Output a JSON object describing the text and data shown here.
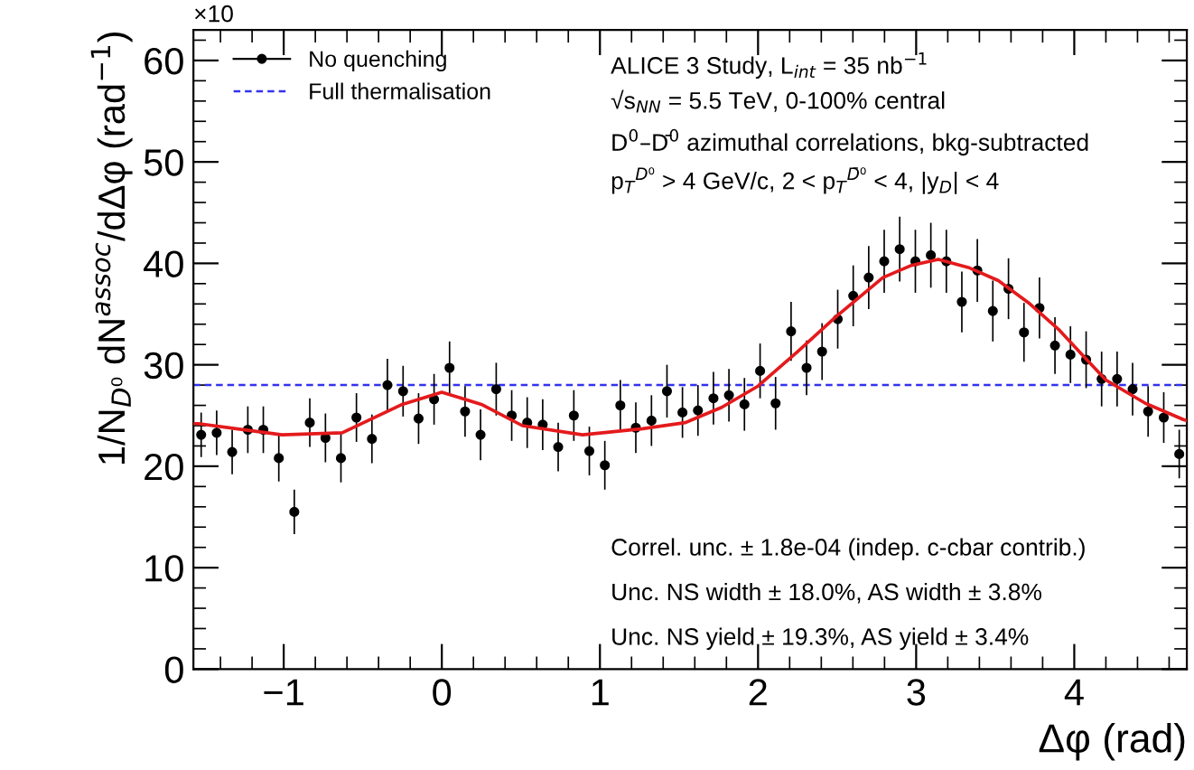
{
  "chart_data": {
    "type": "scatter",
    "xlabel": "Δφ (rad)",
    "ylabel": "1/N$_{D⁰}$ dN$^{assoc}$/dΔφ (rad$^{−1}$)",
    "x": [
      -1.522,
      -1.424,
      -1.326,
      -1.227,
      -1.129,
      -1.031,
      -0.933,
      -0.835,
      -0.736,
      -0.638,
      -0.54,
      -0.442,
      -0.344,
      -0.245,
      -0.147,
      -0.049,
      0.049,
      0.147,
      0.245,
      0.344,
      0.442,
      0.54,
      0.638,
      0.736,
      0.835,
      0.933,
      1.031,
      1.129,
      1.227,
      1.326,
      1.424,
      1.522,
      1.62,
      1.718,
      1.816,
      1.914,
      2.013,
      2.111,
      2.209,
      2.307,
      2.405,
      2.504,
      2.602,
      2.7,
      2.798,
      2.896,
      2.995,
      3.093,
      3.191,
      3.289,
      3.387,
      3.485,
      3.584,
      3.682,
      3.78,
      3.878,
      3.976,
      4.075,
      4.173,
      4.271,
      4.369,
      4.467,
      4.566,
      4.664
    ],
    "series": [
      {
        "name": "No quenching",
        "color": "#000000",
        "marker": "circle",
        "values": [
          23.1,
          23.3,
          21.4,
          23.6,
          23.6,
          20.8,
          15.5,
          24.3,
          22.8,
          20.8,
          24.8,
          22.7,
          28.0,
          27.4,
          24.7,
          26.6,
          29.7,
          25.4,
          23.1,
          27.6,
          25.0,
          24.3,
          24.1,
          21.9,
          25.0,
          21.5,
          20.1,
          26.0,
          23.8,
          24.5,
          27.4,
          25.3,
          25.5,
          26.7,
          27.0,
          26.1,
          29.4,
          26.2,
          33.3,
          29.7,
          31.3,
          34.5,
          36.8,
          38.6,
          40.2,
          41.4,
          40.2,
          40.8,
          40.2,
          36.2,
          39.3,
          35.3,
          37.5,
          33.2,
          35.6,
          31.9,
          31.0,
          30.5,
          28.6,
          28.6,
          27.6,
          25.4,
          24.8,
          21.2
        ],
        "errors": [
          2.2,
          2.2,
          2.2,
          2.3,
          2.3,
          2.3,
          2.2,
          2.4,
          2.4,
          2.4,
          2.4,
          2.4,
          2.6,
          2.5,
          2.5,
          2.5,
          2.6,
          2.5,
          2.5,
          2.6,
          2.5,
          2.5,
          2.5,
          2.4,
          2.5,
          2.4,
          2.4,
          2.5,
          2.5,
          2.5,
          2.6,
          2.5,
          2.5,
          2.6,
          2.6,
          2.6,
          2.7,
          2.6,
          2.9,
          2.7,
          2.8,
          2.9,
          3.0,
          3.1,
          3.1,
          3.2,
          3.1,
          3.2,
          3.1,
          3.0,
          3.1,
          3.0,
          3.0,
          2.9,
          3.0,
          2.8,
          2.8,
          2.8,
          2.7,
          2.7,
          2.6,
          2.5,
          2.5,
          2.4
        ]
      },
      {
        "type": "line",
        "color": "#e41a1c",
        "x": [
          -1.571,
          -1.54,
          -1.01,
          -0.63,
          -0.25,
          0,
          0.25,
          0.51,
          0.89,
          1.27,
          1.54,
          1.77,
          2.0,
          2.25,
          2.49,
          2.79,
          2.97,
          3.14,
          3.33,
          3.52,
          3.72,
          3.9,
          4.05,
          4.2,
          4.45,
          4.69,
          4.712
        ],
        "values": [
          24.2,
          24.2,
          23.1,
          23.3,
          26.1,
          27.3,
          26.1,
          24.0,
          23.1,
          23.7,
          24.3,
          25.8,
          27.9,
          31.3,
          34.7,
          38.6,
          39.8,
          40.4,
          39.6,
          38.3,
          36.0,
          33.5,
          31.0,
          28.5,
          26.2,
          24.6,
          24.5
        ]
      }
    ],
    "ref_lines": [
      {
        "axis": "y",
        "value": 28,
        "label": "Full thermalisation",
        "color": "#3333ee",
        "line_style": "dashed"
      }
    ],
    "annotations": [
      "×10",
      "ALICE 3 Study, L$_{int}$ = 35 nb$^{−1}$",
      "√s$_{NN}$ = 5.5 TeV, 0-100% central",
      "D$^{0}$–D̄$^{0}$ azimuthal correlations, bkg-subtracted",
      "p$_{T}$$^{D⁰}$ > 4 GeV/c, 2 < p$_{T}$$^{D̄⁰}$ < 4, |y$_{D}$| < 4",
      "Correl. unc. ± 1.8e-04 (indep. c-cbar contrib.)",
      "Unc. NS width ± 18.0%, AS width ± 3.8%",
      "Unc. NS yield ± 19.3%, AS yield ± 3.4%"
    ],
    "xlim": [
      -1.571,
      4.712
    ],
    "ylim": [
      0,
      63
    ],
    "xticks": [
      {
        "value": -1,
        "label": "−1"
      },
      0,
      1,
      2,
      3,
      4
    ],
    "yticks": [
      0,
      10,
      20,
      30,
      40,
      50,
      60
    ],
    "legend": "top left",
    "grid": false
  }
}
